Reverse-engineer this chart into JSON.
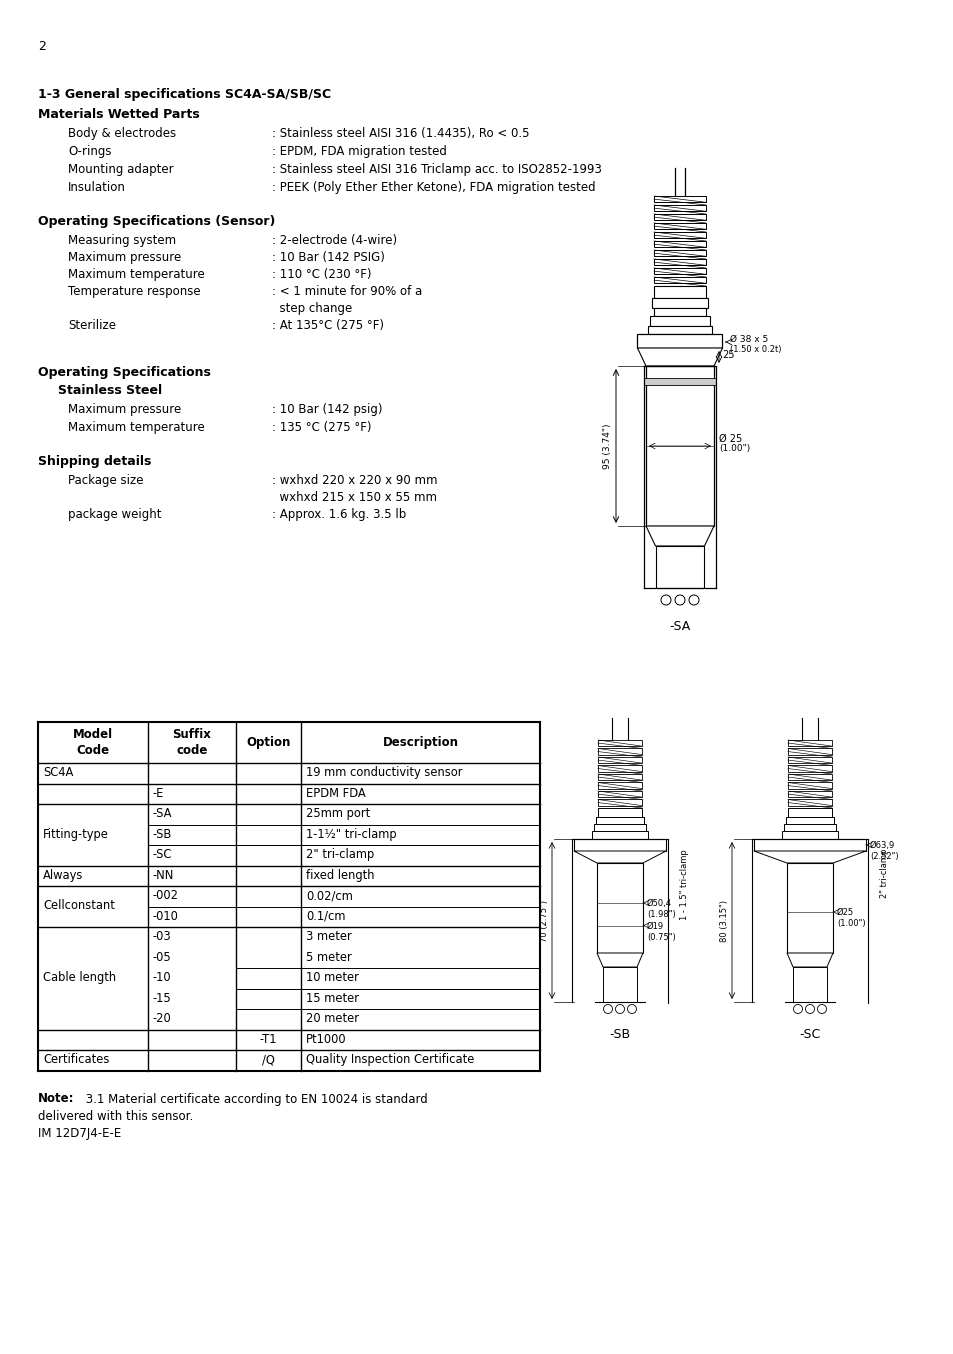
{
  "page_number": "2",
  "bg_color": "#ffffff",
  "section1_title": "1-3 General specifications SC4A-SA/SB/SC",
  "section1_sub": "Materials Wetted Parts",
  "materials": [
    [
      "Body & electrodes",
      ": Stainless steel AISI 316 (1.4435), Ro < 0.5"
    ],
    [
      "O-rings",
      ": EPDM, FDA migration tested"
    ],
    [
      "Mounting adapter",
      ": Stainless steel AISI 316 Triclamp acc. to ISO2852-1993"
    ],
    [
      "Insulation",
      ": PEEK (Poly Ether Ether Ketone), FDA migration tested"
    ]
  ],
  "section2_title": "Operating Specifications (Sensor)",
  "sensor_specs": [
    [
      "Measuring system",
      ": 2-electrode (4-wire)",
      false
    ],
    [
      "Maximum pressure",
      ": 10 Bar (142 PSIG)",
      false
    ],
    [
      "Maximum temperature",
      ": 110 °C (230 °F)",
      false
    ],
    [
      "Temperature response",
      ": < 1 minute for 90% of a",
      true
    ],
    [
      "",
      "  step change",
      false
    ],
    [
      "Sterilize",
      ": At 135°C (275 °F)",
      false
    ]
  ],
  "section3_title": "Operating Specifications",
  "section3_sub": "    Stainless Steel",
  "ss_specs": [
    [
      "Maximum pressure",
      ": 10 Bar (142 psig)"
    ],
    [
      "Maximum temperature",
      ": 135 °C (275 °F)"
    ]
  ],
  "section4_title": "Shipping details",
  "shipping_specs": [
    [
      "Package size",
      ": wxhxd 220 x 220 x 90 mm",
      true
    ],
    [
      "",
      "  wxhxd 215 x 150 x 55 mm",
      false
    ],
    [
      "package weight",
      ": Approx. 1.6 kg. 3.5 lb",
      false
    ]
  ],
  "note_bold": "Note:",
  "note_text": " 3.1 Material certificate according to EN 10024 is standard",
  "note_text2": "delivered with this sensor.",
  "footer": "IM 12D7J4-E-E"
}
